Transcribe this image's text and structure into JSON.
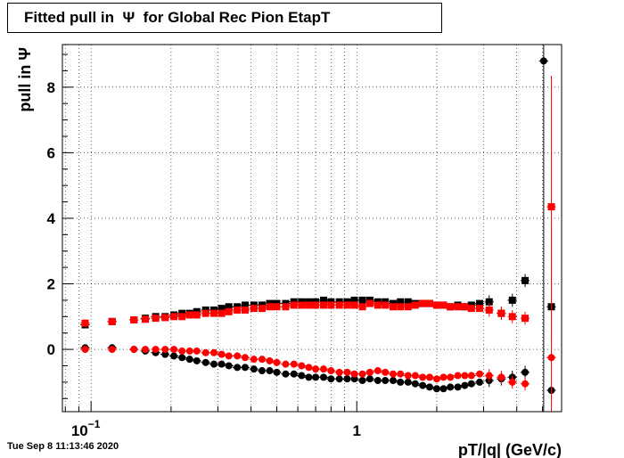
{
  "title": "Fitted pull in  Ψ  for Global Rec Pion EtapT",
  "timestamp": "Tue Sep  8 11:13:46 2020",
  "chart_data": {
    "type": "scatter",
    "title": "Fitted pull in  Ψ  for Global Rec Pion EtapT",
    "xlabel": "pT/|q| (GeV/c)",
    "ylabel": "pull in  Ψ",
    "xscale": "log",
    "xlim": [
      0.078,
      5.9
    ],
    "ylim": [
      -1.9,
      9.3
    ],
    "grid": true,
    "x_tick_labels": [
      {
        "value": 0.1,
        "base": "10",
        "exp": "−1"
      },
      {
        "value": 1,
        "base": "1",
        "exp": ""
      }
    ],
    "y_tick_labels": [
      0,
      2,
      4,
      6,
      8
    ],
    "series": [
      {
        "marker": "square",
        "color": "#000000",
        "x": [
          0.095,
          0.12,
          0.145,
          0.16,
          0.175,
          0.19,
          0.205,
          0.22,
          0.235,
          0.25,
          0.27,
          0.29,
          0.31,
          0.33,
          0.355,
          0.38,
          0.41,
          0.44,
          0.47,
          0.5,
          0.54,
          0.58,
          0.62,
          0.66,
          0.7,
          0.75,
          0.8,
          0.86,
          0.92,
          0.98,
          1.05,
          1.12,
          1.2,
          1.28,
          1.37,
          1.46,
          1.56,
          1.66,
          1.77,
          1.88,
          2.0,
          2.12,
          2.25,
          2.4,
          2.55,
          2.7,
          2.9,
          3.15,
          3.5,
          3.85,
          4.3,
          5.4
        ],
        "y": [
          0.75,
          0.85,
          0.9,
          0.95,
          1.0,
          1.0,
          1.05,
          1.1,
          1.1,
          1.15,
          1.2,
          1.2,
          1.25,
          1.3,
          1.3,
          1.35,
          1.35,
          1.35,
          1.4,
          1.4,
          1.4,
          1.45,
          1.45,
          1.45,
          1.45,
          1.5,
          1.45,
          1.45,
          1.45,
          1.5,
          1.5,
          1.5,
          1.45,
          1.45,
          1.4,
          1.45,
          1.45,
          1.4,
          1.4,
          1.4,
          1.35,
          1.35,
          1.3,
          1.35,
          1.3,
          1.35,
          1.4,
          1.45,
          1.1,
          1.5,
          2.1,
          1.3
        ]
      },
      {
        "marker": "square",
        "color": "#ff0000",
        "x": [
          0.095,
          0.12,
          0.145,
          0.16,
          0.175,
          0.19,
          0.205,
          0.22,
          0.235,
          0.25,
          0.27,
          0.29,
          0.31,
          0.33,
          0.355,
          0.38,
          0.41,
          0.44,
          0.47,
          0.5,
          0.54,
          0.58,
          0.62,
          0.66,
          0.7,
          0.75,
          0.8,
          0.86,
          0.92,
          0.98,
          1.05,
          1.12,
          1.2,
          1.28,
          1.37,
          1.46,
          1.56,
          1.66,
          1.77,
          1.88,
          2.0,
          2.12,
          2.25,
          2.4,
          2.55,
          2.7,
          2.9,
          3.15,
          3.5,
          3.85,
          4.3,
          5.4
        ],
        "y": [
          0.8,
          0.85,
          0.9,
          0.92,
          0.95,
          0.97,
          1.0,
          1.0,
          1.05,
          1.05,
          1.1,
          1.1,
          1.1,
          1.15,
          1.2,
          1.2,
          1.25,
          1.25,
          1.3,
          1.3,
          1.3,
          1.35,
          1.35,
          1.35,
          1.35,
          1.35,
          1.35,
          1.35,
          1.35,
          1.35,
          1.3,
          1.4,
          1.35,
          1.35,
          1.3,
          1.3,
          1.3,
          1.35,
          1.4,
          1.4,
          1.35,
          1.35,
          1.3,
          1.3,
          1.3,
          1.25,
          1.25,
          1.2,
          1.1,
          1.0,
          0.95,
          4.35
        ]
      },
      {
        "marker": "circle",
        "color": "#000000",
        "x": [
          0.095,
          0.12,
          0.145,
          0.16,
          0.175,
          0.19,
          0.205,
          0.22,
          0.235,
          0.25,
          0.27,
          0.29,
          0.31,
          0.33,
          0.355,
          0.38,
          0.41,
          0.44,
          0.47,
          0.5,
          0.54,
          0.58,
          0.62,
          0.66,
          0.7,
          0.75,
          0.8,
          0.86,
          0.92,
          0.98,
          1.05,
          1.12,
          1.2,
          1.28,
          1.37,
          1.46,
          1.56,
          1.66,
          1.77,
          1.88,
          2.0,
          2.12,
          2.25,
          2.4,
          2.55,
          2.7,
          2.9,
          3.15,
          3.5,
          3.85,
          4.3,
          5.4,
          5.05
        ],
        "y": [
          0.05,
          0.05,
          0.0,
          -0.05,
          -0.1,
          -0.15,
          -0.2,
          -0.25,
          -0.3,
          -0.35,
          -0.4,
          -0.45,
          -0.45,
          -0.5,
          -0.55,
          -0.55,
          -0.6,
          -0.65,
          -0.65,
          -0.7,
          -0.75,
          -0.75,
          -0.8,
          -0.85,
          -0.85,
          -0.85,
          -0.9,
          -0.9,
          -0.9,
          -0.9,
          -0.95,
          -0.9,
          -0.95,
          -0.95,
          -0.95,
          -1.0,
          -1.0,
          -1.05,
          -1.1,
          -1.15,
          -1.2,
          -1.2,
          -1.15,
          -1.15,
          -1.1,
          -1.05,
          -1.0,
          -0.95,
          -0.9,
          -0.85,
          -0.7,
          -1.25,
          8.8
        ]
      },
      {
        "marker": "circle",
        "color": "#ff0000",
        "x": [
          0.095,
          0.12,
          0.145,
          0.16,
          0.175,
          0.19,
          0.205,
          0.22,
          0.235,
          0.25,
          0.27,
          0.29,
          0.31,
          0.33,
          0.355,
          0.38,
          0.41,
          0.44,
          0.47,
          0.5,
          0.54,
          0.58,
          0.62,
          0.66,
          0.7,
          0.75,
          0.8,
          0.86,
          0.92,
          0.98,
          1.05,
          1.12,
          1.2,
          1.28,
          1.37,
          1.46,
          1.56,
          1.66,
          1.77,
          1.88,
          2.0,
          2.12,
          2.25,
          2.4,
          2.55,
          2.7,
          2.9,
          3.15,
          3.5,
          3.85,
          4.3,
          5.4
        ],
        "y": [
          0.0,
          0.0,
          0.0,
          0.0,
          0.0,
          0.0,
          0.0,
          -0.05,
          -0.05,
          -0.05,
          -0.1,
          -0.1,
          -0.15,
          -0.2,
          -0.2,
          -0.25,
          -0.3,
          -0.3,
          -0.35,
          -0.4,
          -0.45,
          -0.45,
          -0.5,
          -0.55,
          -0.6,
          -0.6,
          -0.65,
          -0.7,
          -0.7,
          -0.75,
          -0.75,
          -0.7,
          -0.65,
          -0.7,
          -0.75,
          -0.75,
          -0.8,
          -0.8,
          -0.85,
          -0.85,
          -0.9,
          -0.85,
          -0.85,
          -0.8,
          -0.8,
          -0.8,
          -0.75,
          -0.8,
          -0.85,
          -1.0,
          -1.05,
          -0.25
        ]
      }
    ]
  }
}
